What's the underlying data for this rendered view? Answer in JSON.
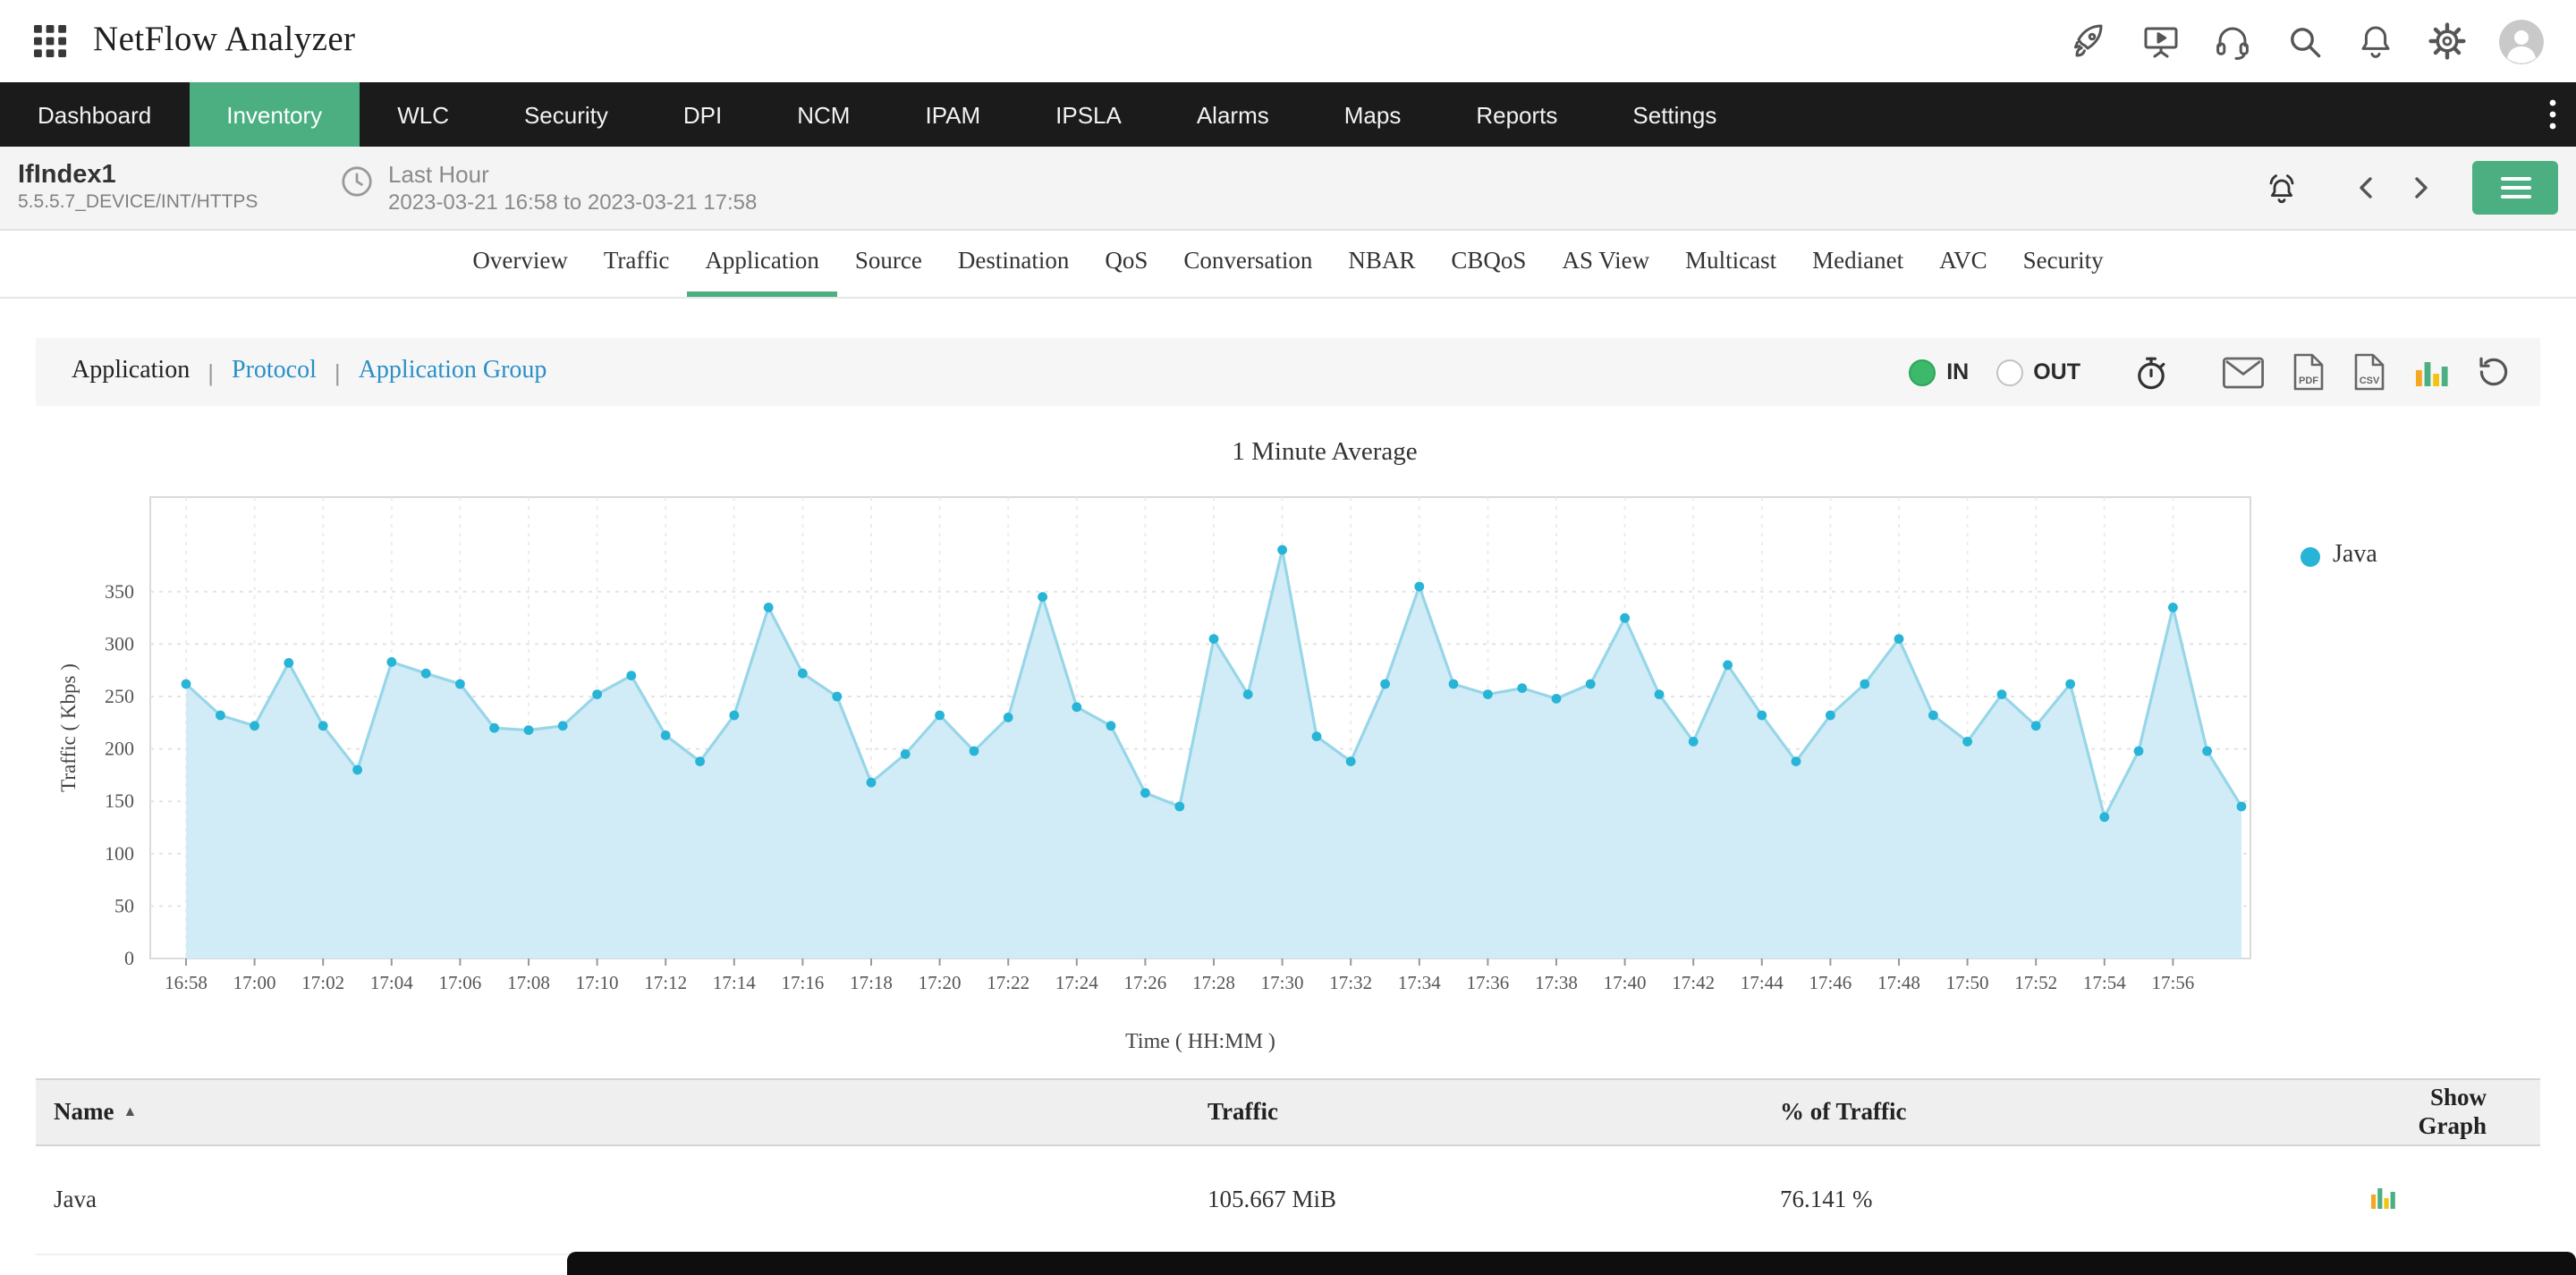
{
  "header": {
    "app_title": "NetFlow Analyzer",
    "icons": [
      "apps-grid-icon",
      "launch-icon",
      "presentation-icon",
      "headset-icon",
      "search-icon",
      "notifications-icon",
      "settings-icon",
      "user-avatar"
    ]
  },
  "nav": {
    "items": [
      {
        "label": "Dashboard",
        "active": false
      },
      {
        "label": "Inventory",
        "active": true
      },
      {
        "label": "WLC",
        "active": false
      },
      {
        "label": "Security",
        "active": false
      },
      {
        "label": "DPI",
        "active": false
      },
      {
        "label": "NCM",
        "active": false
      },
      {
        "label": "IPAM",
        "active": false
      },
      {
        "label": "IPSLA",
        "active": false
      },
      {
        "label": "Alarms",
        "active": false
      },
      {
        "label": "Maps",
        "active": false
      },
      {
        "label": "Reports",
        "active": false
      },
      {
        "label": "Settings",
        "active": false
      }
    ],
    "overflow_icon": "kebab-menu-icon"
  },
  "context": {
    "interface_name": "IfIndex1",
    "interface_path": "5.5.5.7_DEVICE/INT/HTTPS",
    "period_label": "Last Hour",
    "period_range": "2023-03-21 16:58 to 2023-03-21 17:58",
    "right_icons": [
      "alarm-settings-icon",
      "chevron-left-icon",
      "chevron-right-icon",
      "menu-button"
    ]
  },
  "tabs": {
    "items": [
      "Overview",
      "Traffic",
      "Application",
      "Source",
      "Destination",
      "QoS",
      "Conversation",
      "NBAR",
      "CBQoS",
      "AS View",
      "Multicast",
      "Medianet",
      "AVC",
      "Security"
    ],
    "active": "Application"
  },
  "filter": {
    "options": [
      {
        "label": "Application",
        "active": true
      },
      {
        "label": "Protocol",
        "active": false
      },
      {
        "label": "Application Group",
        "active": false
      }
    ],
    "separator": "|",
    "in_label": "IN",
    "out_label": "OUT",
    "selected_direction": "IN",
    "toolbar_icons": [
      "schedule-icon",
      "email-icon",
      "pdf-export-icon",
      "csv-export-icon",
      "bar-chart-icon",
      "refresh-icon"
    ]
  },
  "chart_data": {
    "type": "area",
    "title": "1 Minute Average",
    "xlabel": "Time ( HH:MM )",
    "ylabel": "Traffic ( Kbps )",
    "ylim": [
      0,
      440
    ],
    "yticks": [
      0,
      50,
      100,
      150,
      200,
      250,
      300,
      350
    ],
    "grid": true,
    "legend_position": "right",
    "x": [
      "16:58",
      "16:59",
      "17:00",
      "17:01",
      "17:02",
      "17:03",
      "17:04",
      "17:05",
      "17:06",
      "17:07",
      "17:08",
      "17:09",
      "17:10",
      "17:11",
      "17:12",
      "17:13",
      "17:14",
      "17:15",
      "17:16",
      "17:17",
      "17:18",
      "17:19",
      "17:20",
      "17:21",
      "17:22",
      "17:23",
      "17:24",
      "17:25",
      "17:26",
      "17:27",
      "17:28",
      "17:29",
      "17:30",
      "17:31",
      "17:32",
      "17:33",
      "17:34",
      "17:35",
      "17:36",
      "17:37",
      "17:38",
      "17:39",
      "17:40",
      "17:41",
      "17:42",
      "17:43",
      "17:44",
      "17:45",
      "17:46",
      "17:47",
      "17:48",
      "17:49",
      "17:50",
      "17:51",
      "17:52",
      "17:53",
      "17:54",
      "17:55",
      "17:56",
      "17:57",
      "17:58"
    ],
    "series": [
      {
        "name": "Java",
        "color": "#27b4d7",
        "line_color": "#96d6e8",
        "fill_color": "#cdeaf5",
        "values": [
          262,
          232,
          222,
          282,
          222,
          180,
          283,
          272,
          262,
          220,
          218,
          222,
          252,
          270,
          213,
          188,
          232,
          335,
          272,
          250,
          168,
          195,
          232,
          198,
          230,
          345,
          240,
          222,
          158,
          145,
          305,
          252,
          390,
          212,
          188,
          262,
          355,
          262,
          252,
          258,
          248,
          262,
          325,
          252,
          207,
          280,
          232,
          188,
          232,
          262,
          305,
          232,
          207,
          252,
          222,
          262,
          135,
          198,
          335,
          198,
          145
        ]
      }
    ]
  },
  "table": {
    "columns": [
      "Name",
      "Traffic",
      "% of Traffic",
      "Show Graph"
    ],
    "sort_column": "Name",
    "sort_direction": "asc",
    "sort_indicator": "▲",
    "rows": [
      {
        "name": "Java",
        "traffic": "105.667 MiB",
        "percent_of_traffic": "76.141 %"
      }
    ]
  },
  "colors": {
    "accent_green": "#4CAF82",
    "radio_green": "#3cb96a",
    "link_blue": "#2a8fc7",
    "nav_bg": "#1b1b1b",
    "chart_dot": "#27b4d7",
    "chart_line": "#96d6e8",
    "chart_fill": "#cdeaf5"
  }
}
